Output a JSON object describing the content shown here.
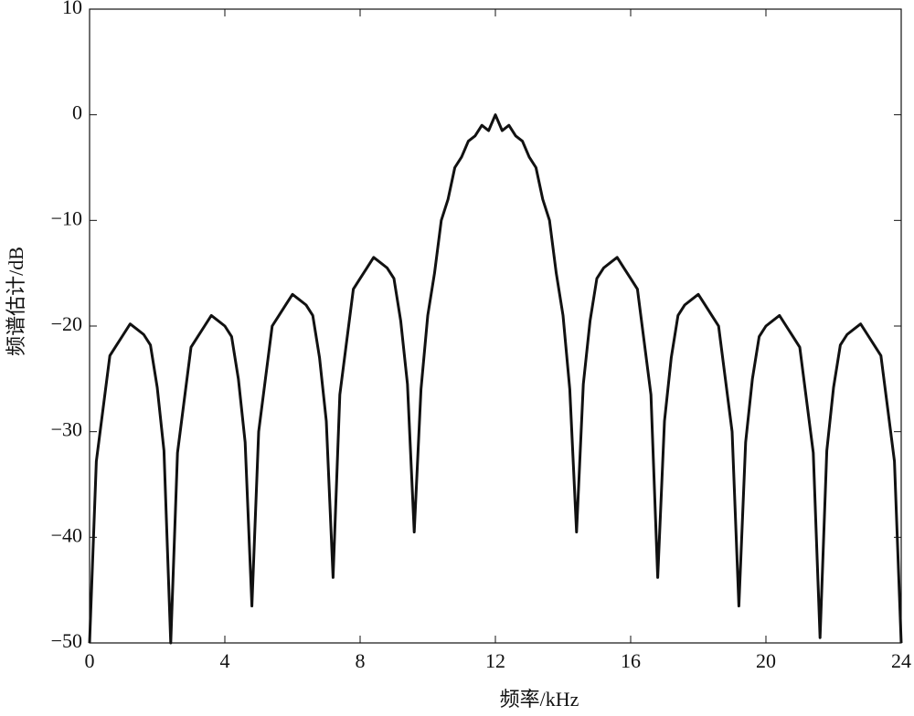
{
  "chart_data": {
    "type": "line",
    "xlabel": "频率/kHz",
    "ylabel": "频谱估计/dB",
    "xlim": [
      0,
      24
    ],
    "xticks": [
      0,
      4,
      8,
      12,
      16,
      20,
      24
    ],
    "ylim": [
      -50,
      10
    ],
    "yticks": [
      {
        "value": -50,
        "label": "−50"
      },
      {
        "value": -40,
        "label": "−40"
      },
      {
        "value": -30,
        "label": "−30"
      },
      {
        "value": -20,
        "label": "−20"
      },
      {
        "value": -10,
        "label": "−10"
      },
      0,
      10
    ],
    "grid": false,
    "series": [
      {
        "color": "#111111",
        "x": [
          0.0,
          0.2,
          0.4,
          0.6,
          0.8,
          1.0,
          1.2,
          1.4,
          1.6,
          1.8,
          2.0,
          2.2,
          2.4,
          2.6,
          2.8,
          3.0,
          3.2,
          3.4,
          3.6,
          3.8,
          4.0,
          4.2,
          4.4,
          4.6,
          4.8,
          5.0,
          5.2,
          5.4,
          5.6,
          5.8,
          6.0,
          6.2,
          6.4,
          6.6,
          6.8,
          7.0,
          7.2,
          7.4,
          7.6,
          7.8,
          8.0,
          8.2,
          8.4,
          8.6,
          8.8,
          9.0,
          9.2,
          9.4,
          9.6,
          9.8,
          10.0,
          10.2,
          10.4,
          10.6,
          10.8,
          11.0,
          11.2,
          11.4,
          11.6,
          11.8,
          12.0,
          12.2,
          12.4,
          12.6,
          12.8,
          13.0,
          13.2,
          13.4,
          13.6,
          13.8,
          14.0,
          14.2,
          14.4,
          14.6,
          14.8,
          15.0,
          15.2,
          15.4,
          15.6,
          15.8,
          16.0,
          16.2,
          16.4,
          16.6,
          16.8,
          17.0,
          17.2,
          17.4,
          17.6,
          17.8,
          18.0,
          18.2,
          18.4,
          18.6,
          18.8,
          19.0,
          19.2,
          19.4,
          19.6,
          19.8,
          20.0,
          20.2,
          20.4,
          20.6,
          20.8,
          21.0,
          21.2,
          21.4,
          21.6,
          21.8,
          22.0,
          22.2,
          22.4,
          22.6,
          22.8,
          23.0,
          23.2,
          23.4,
          23.6,
          23.8,
          24.0
        ],
        "values": [
          -50,
          -32.8,
          -27.8,
          -22.8,
          -21.8,
          -20.8,
          -19.8,
          -20.3,
          -20.8,
          -21.8,
          -25.8,
          -31.8,
          -50,
          -32,
          -27,
          -22,
          -21,
          -20,
          -19,
          -19.5,
          -20,
          -21,
          -25,
          -31,
          -46.5,
          -30,
          -25,
          -20,
          -19,
          -18,
          -17,
          -17.5,
          -18,
          -19,
          -23,
          -29,
          -43.8,
          -26.5,
          -21.5,
          -16.5,
          -15.5,
          -14.5,
          -13.5,
          -14,
          -14.5,
          -15.5,
          -19.5,
          -25.5,
          -39.5,
          -26,
          -19,
          -15,
          -10,
          -8,
          -5,
          -4,
          -2.5,
          -2,
          -1,
          -1.5,
          0,
          -1.5,
          -1,
          -2,
          -2.5,
          -4,
          -5,
          -8,
          -10,
          -15,
          -19,
          -26,
          -39.5,
          -25.5,
          -19.5,
          -15.5,
          -14.5,
          -14,
          -13.5,
          -14.5,
          -15.5,
          -16.5,
          -21.5,
          -26.5,
          -43.8,
          -29,
          -23,
          -19,
          -18,
          -17.5,
          -17,
          -18,
          -19,
          -20,
          -25,
          -30,
          -46.5,
          -31,
          -25,
          -21,
          -20,
          -19.5,
          -19,
          -20,
          -21,
          -22,
          -27,
          -32,
          -49.5,
          -31.8,
          -25.8,
          -21.8,
          -20.8,
          -20.3,
          -19.8,
          -20.8,
          -21.8,
          -22.8,
          -27.8,
          -32.8,
          -50
        ]
      }
    ]
  }
}
